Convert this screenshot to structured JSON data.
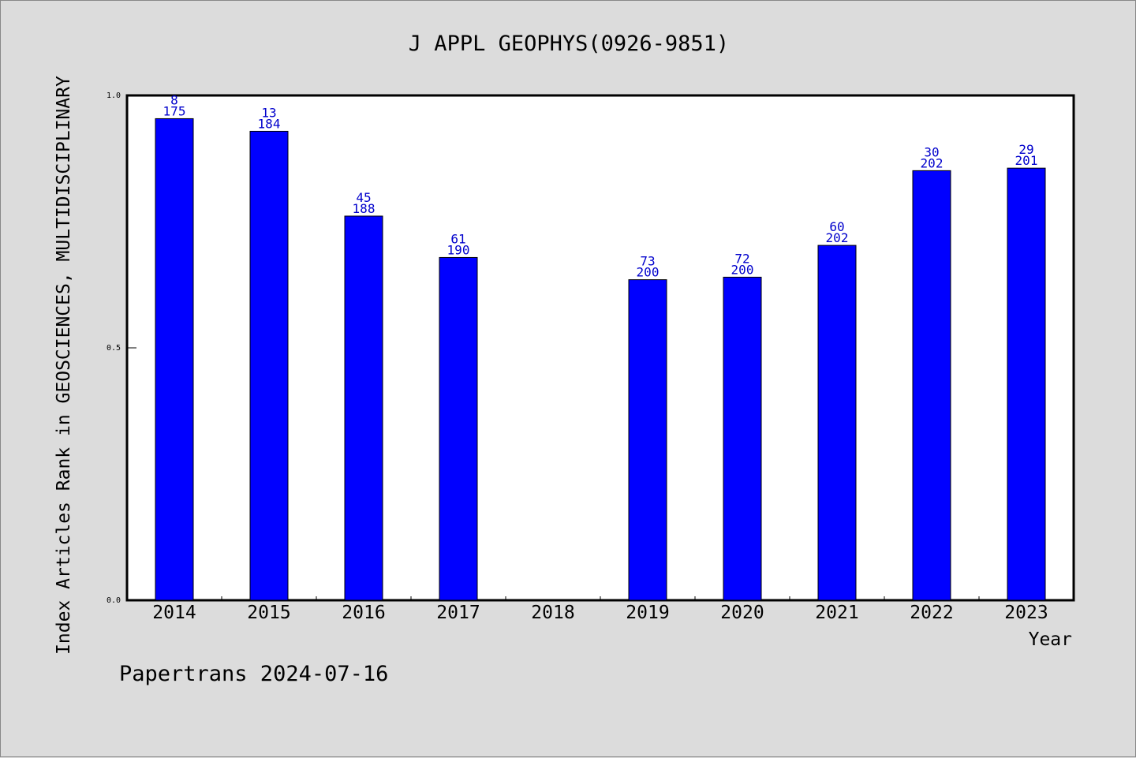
{
  "chart_data": {
    "type": "bar",
    "title": "J APPL GEOPHYS(0926-9851)",
    "xlabel": "Year",
    "ylabel": "Index Articles Rank in GEOSCIENCES, MULTIDISCIPLINARY",
    "ylim": [
      0,
      1.0
    ],
    "yticks": [
      {
        "value": 0.0,
        "label": "0.0"
      },
      {
        "value": 0.5,
        "label": "0.5"
      },
      {
        "value": 1.0,
        "label": "1.0"
      }
    ],
    "categories": [
      "2014",
      "2015",
      "2016",
      "2017",
      "2018",
      "2019",
      "2020",
      "2021",
      "2022",
      "2023"
    ],
    "values": [
      0.954,
      0.929,
      0.761,
      0.679,
      null,
      0.635,
      0.64,
      0.703,
      0.851,
      0.856
    ],
    "rank_labels": [
      "8",
      "13",
      "45",
      "61",
      "",
      "73",
      "72",
      "60",
      "30",
      "29"
    ],
    "total_labels": [
      "175",
      "184",
      "188",
      "190",
      "",
      "200",
      "200",
      "202",
      "202",
      "201"
    ],
    "bar_color": "#0000ff",
    "label_color": "#0000cc",
    "grid": false
  },
  "footer": "Papertrans 2024-07-16"
}
